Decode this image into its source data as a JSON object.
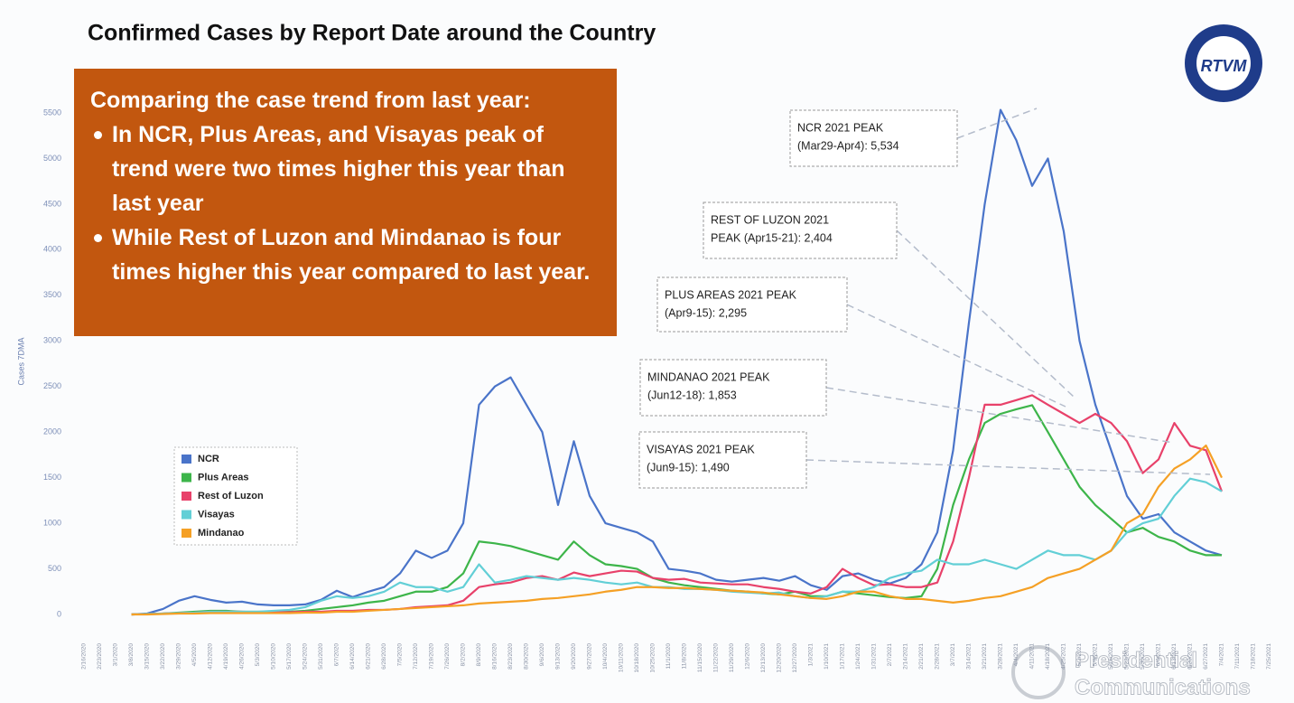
{
  "chart_data": {
    "type": "line",
    "title": "Confirmed Cases by Report Date around the Country",
    "y_label": "Cases 7DMA",
    "categories": [
      "2/16/2020",
      "2/23/2020",
      "3/1/2020",
      "3/8/2020",
      "3/15/2020",
      "3/22/2020",
      "3/29/2020",
      "4/5/2020",
      "4/12/2020",
      "4/19/2020",
      "4/26/2020",
      "5/3/2020",
      "5/10/2020",
      "5/17/2020",
      "5/24/2020",
      "5/31/2020",
      "6/7/2020",
      "6/14/2020",
      "6/21/2020",
      "6/28/2020",
      "7/5/2020",
      "7/12/2020",
      "7/19/2020",
      "7/26/2020",
      "8/2/2020",
      "8/9/2020",
      "8/16/2020",
      "8/23/2020",
      "8/30/2020",
      "9/6/2020",
      "9/13/2020",
      "9/20/2020",
      "9/27/2020",
      "10/4/2020",
      "10/11/2020",
      "10/18/2020",
      "10/25/2020",
      "11/1/2020",
      "11/8/2020",
      "11/15/2020",
      "11/22/2020",
      "11/29/2020",
      "12/6/2020",
      "12/13/2020",
      "12/20/2020",
      "12/27/2020",
      "1/3/2021",
      "1/10/2021",
      "1/17/2021",
      "1/24/2021",
      "1/31/2021",
      "2/7/2021",
      "2/14/2021",
      "2/21/2021",
      "2/28/2021",
      "3/7/2021",
      "3/14/2021",
      "3/21/2021",
      "3/28/2021",
      "4/4/2021",
      "4/11/2021",
      "4/18/2021",
      "4/25/2021",
      "5/2/2021",
      "5/9/2021",
      "5/16/2021",
      "5/23/2021",
      "5/30/2021",
      "6/6/2021",
      "6/13/2021",
      "6/20/2021",
      "6/27/2021",
      "7/4/2021",
      "7/11/2021",
      "7/18/2021",
      "7/25/2021"
    ],
    "series": [
      {
        "name": "NCR",
        "color": "#4a74c9",
        "values": [
          null,
          null,
          null,
          0,
          10,
          60,
          150,
          200,
          160,
          130,
          140,
          110,
          100,
          100,
          110,
          160,
          260,
          190,
          250,
          300,
          450,
          700,
          620,
          700,
          1000,
          2300,
          2500,
          2600,
          2300,
          2000,
          1200,
          1900,
          1300,
          1000,
          950,
          900,
          800,
          500,
          480,
          450,
          380,
          360,
          380,
          400,
          370,
          420,
          320,
          270,
          420,
          450,
          380,
          340,
          400,
          550,
          900,
          1800,
          3200,
          4500,
          5534,
          5200,
          4700,
          5000,
          4200,
          3000,
          2300,
          1800,
          1300,
          1050,
          1100,
          900,
          800,
          700,
          650,
          null,
          null,
          null
        ]
      },
      {
        "name": "Plus Areas",
        "color": "#3db54a",
        "values": [
          null,
          null,
          null,
          0,
          5,
          10,
          20,
          30,
          40,
          40,
          30,
          30,
          30,
          30,
          40,
          60,
          80,
          100,
          130,
          150,
          200,
          250,
          250,
          300,
          450,
          800,
          780,
          750,
          700,
          650,
          600,
          800,
          650,
          550,
          530,
          500,
          400,
          350,
          320,
          300,
          280,
          260,
          250,
          230,
          220,
          250,
          200,
          200,
          250,
          230,
          210,
          190,
          180,
          200,
          500,
          1200,
          1700,
          2100,
          2200,
          2250,
          2295,
          2000,
          1700,
          1400,
          1200,
          1050,
          900,
          950,
          850,
          800,
          700,
          650,
          650,
          null,
          null,
          null
        ]
      },
      {
        "name": "Rest of Luzon",
        "color": "#e8416a",
        "values": [
          null,
          null,
          null,
          0,
          5,
          10,
          15,
          20,
          30,
          30,
          30,
          25,
          25,
          25,
          30,
          30,
          40,
          40,
          50,
          50,
          60,
          80,
          90,
          100,
          150,
          300,
          330,
          350,
          400,
          420,
          380,
          460,
          420,
          450,
          480,
          470,
          400,
          380,
          390,
          350,
          340,
          330,
          330,
          300,
          280,
          250,
          230,
          300,
          500,
          400,
          320,
          330,
          300,
          300,
          350,
          800,
          1500,
          2300,
          2300,
          2350,
          2404,
          2300,
          2200,
          2100,
          2200,
          2100,
          1900,
          1550,
          1700,
          2100,
          1850,
          1800,
          1350,
          null,
          null,
          null
        ]
      },
      {
        "name": "Visayas",
        "color": "#62cfd6",
        "values": [
          null,
          null,
          null,
          0,
          5,
          10,
          15,
          20,
          30,
          30,
          30,
          30,
          40,
          50,
          80,
          150,
          200,
          180,
          200,
          250,
          350,
          300,
          300,
          250,
          300,
          550,
          350,
          380,
          420,
          400,
          380,
          400,
          380,
          350,
          330,
          350,
          300,
          300,
          280,
          280,
          270,
          250,
          240,
          230,
          240,
          200,
          180,
          200,
          250,
          250,
          300,
          400,
          450,
          480,
          600,
          550,
          550,
          600,
          550,
          500,
          600,
          700,
          650,
          650,
          600,
          700,
          900,
          1000,
          1050,
          1300,
          1490,
          1450,
          1350,
          null,
          null,
          null
        ]
      },
      {
        "name": "Mindanao",
        "color": "#f5a025",
        "values": [
          null,
          null,
          null,
          0,
          0,
          5,
          10,
          10,
          15,
          15,
          15,
          15,
          15,
          15,
          20,
          20,
          30,
          30,
          40,
          50,
          60,
          70,
          80,
          90,
          100,
          120,
          130,
          140,
          150,
          170,
          180,
          200,
          220,
          250,
          270,
          300,
          300,
          290,
          290,
          280,
          270,
          260,
          250,
          240,
          220,
          200,
          180,
          170,
          200,
          250,
          250,
          200,
          170,
          170,
          150,
          130,
          150,
          180,
          200,
          250,
          300,
          400,
          450,
          500,
          600,
          700,
          1000,
          1100,
          1400,
          1600,
          1700,
          1853,
          1500,
          null,
          null,
          null
        ]
      }
    ],
    "ylim": [
      0,
      5500
    ],
    "yticks": [
      0,
      500,
      1000,
      1500,
      2000,
      2500,
      3000,
      3500,
      4000,
      4500,
      5000,
      5500
    ],
    "annotations": [
      {
        "lines": [
          "NCR 2021 PEAK",
          "(Mar29-Apr4): 5,534"
        ]
      },
      {
        "lines": [
          "REST OF LUZON 2021",
          "PEAK (Apr15-21):  2,404"
        ]
      },
      {
        "lines": [
          "PLUS AREAS 2021 PEAK",
          "(Apr9-15): 2,295"
        ]
      },
      {
        "lines": [
          "MINDANAO 2021 PEAK",
          "(Jun12-18): 1,853"
        ]
      },
      {
        "lines": [
          "VISAYAS 2021 PEAK",
          "(Jun9-15): 1,490"
        ]
      }
    ]
  },
  "callout": {
    "heading": "Comparing the case trend from last year:",
    "bullets": [
      "In NCR, Plus Areas, and Visayas peak of trend were two times higher this year than last year",
      "While Rest of Luzon and Mindanao is four times higher this year compared to last year."
    ]
  },
  "logo": "RTVM",
  "watermark": [
    "Presidential",
    "Communications"
  ]
}
